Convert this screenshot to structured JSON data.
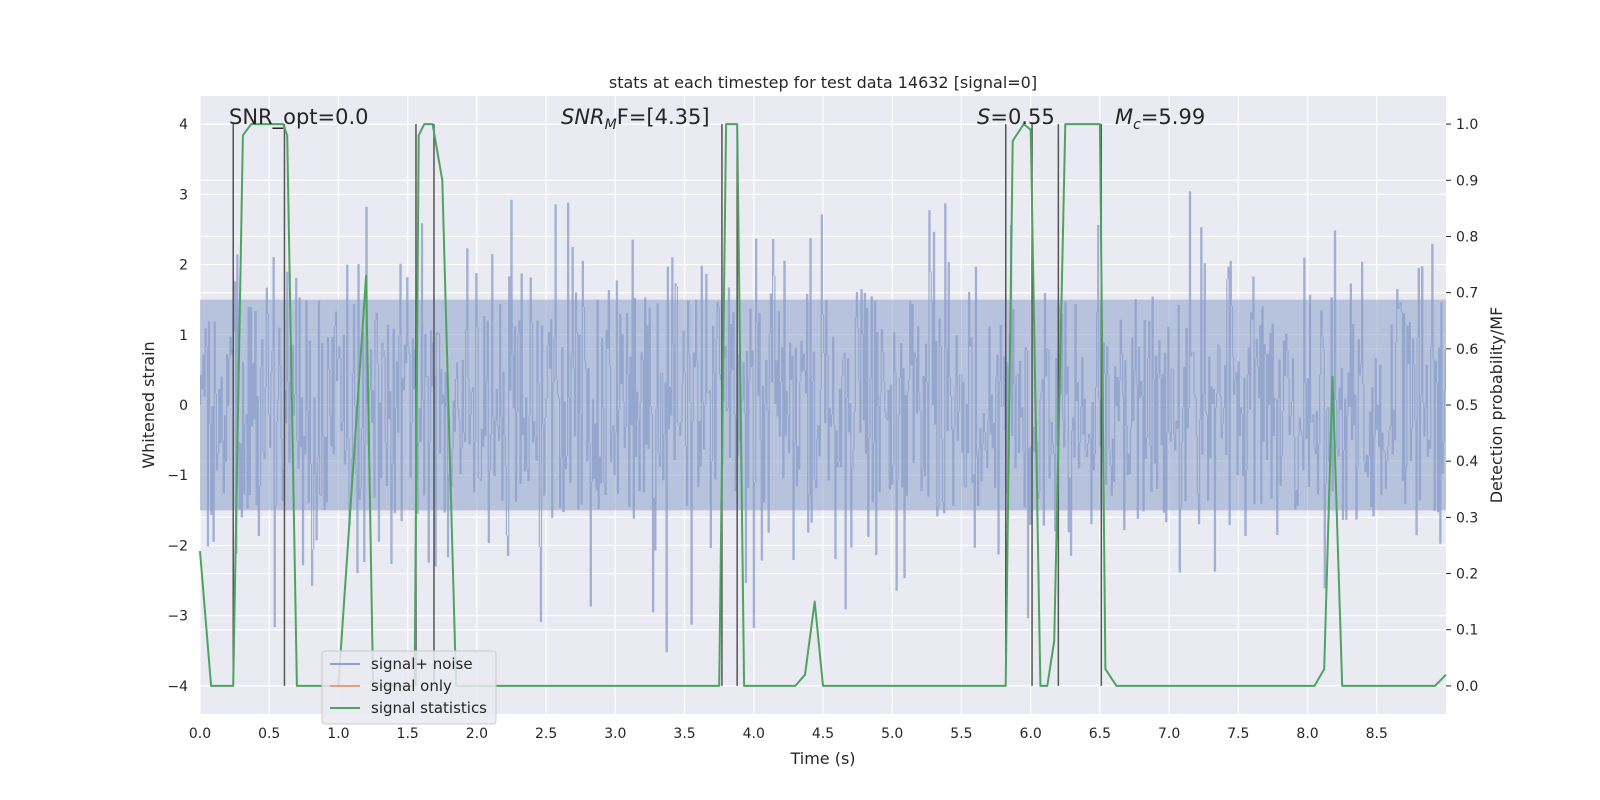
{
  "chart_data": {
    "type": "line",
    "title": "stats at each timestep for test data 14632 [signal=0]",
    "xlabel": "Time (s)",
    "ylabel": "Whitened strain",
    "y2label": "Detection probability/MF",
    "xlim": [
      0.0,
      9.0
    ],
    "ylim": [
      -4.4,
      4.4
    ],
    "y2lim": [
      -0.05,
      1.05
    ],
    "xticks": [
      "0.0",
      "0.5",
      "1.0",
      "1.5",
      "2.0",
      "2.5",
      "3.0",
      "3.5",
      "4.0",
      "4.5",
      "5.0",
      "5.5",
      "6.0",
      "6.5",
      "7.0",
      "7.5",
      "8.0",
      "8.5"
    ],
    "yticks": [
      "−4",
      "−3",
      "−2",
      "−1",
      "0",
      "1",
      "2",
      "3",
      "4"
    ],
    "y2ticks": [
      "0.0",
      "0.1",
      "0.2",
      "0.3",
      "0.4",
      "0.5",
      "0.6",
      "0.7",
      "0.8",
      "0.9",
      "1.0"
    ],
    "grid": true,
    "legend_position": "lower-left",
    "annotations": {
      "snr_opt": "SNR_opt=0.0",
      "snr_mf_base": "SNR",
      "snr_mf_sub": "M",
      "snr_mf_rest": "F=[4.35]",
      "s_label": "S",
      "s_value": "=0.55",
      "mc_base": "M",
      "mc_sub": "c",
      "mc_value": "=5.99"
    },
    "series": [
      {
        "name": "signal+ noise",
        "color": "#8da0cb",
        "axis": "left",
        "kind": "noise-band",
        "values_description_rms": 1.0,
        "sample_envelope": [
          [
            0.0,
            1.5
          ],
          [
            9.0,
            1.5
          ]
        ]
      },
      {
        "name": "signal only",
        "color": "#e5a07e",
        "axis": "left",
        "x": [],
        "y": []
      },
      {
        "name": "signal statistics",
        "color": "#4ea35f",
        "axis": "right",
        "x": [
          0.0,
          0.08,
          0.15,
          0.24,
          0.31,
          0.37,
          0.6,
          0.63,
          0.7,
          0.8,
          1.0,
          1.2,
          1.25,
          1.3,
          1.38,
          1.45,
          1.55,
          1.58,
          1.62,
          1.68,
          1.75,
          1.85,
          2.0,
          2.5,
          3.0,
          3.5,
          3.75,
          3.8,
          3.88,
          3.93,
          4.05,
          4.15,
          4.3,
          4.37,
          4.44,
          4.5,
          4.6,
          5.0,
          5.5,
          5.82,
          5.87,
          5.95,
          6.0,
          6.07,
          6.12,
          6.17,
          6.25,
          6.38,
          6.5,
          6.54,
          6.62,
          6.8,
          6.9,
          7.0,
          7.5,
          8.05,
          8.12,
          8.18,
          8.25,
          8.3,
          8.5,
          8.8,
          8.92,
          9.0
        ],
        "y": [
          0.24,
          0.0,
          0.0,
          0.0,
          0.98,
          1.0,
          1.0,
          0.98,
          0.0,
          0.0,
          0.0,
          0.73,
          0.0,
          0.0,
          0.0,
          0.0,
          0.0,
          0.98,
          1.0,
          1.0,
          0.9,
          0.0,
          0.0,
          0.0,
          0.0,
          0.0,
          0.0,
          1.0,
          1.0,
          0.0,
          0.0,
          0.0,
          0.0,
          0.02,
          0.15,
          0.0,
          0.0,
          0.0,
          0.0,
          0.0,
          0.97,
          1.0,
          0.99,
          0.0,
          0.0,
          0.08,
          1.0,
          1.0,
          1.0,
          0.03,
          0.0,
          0.0,
          0.0,
          0.0,
          0.0,
          0.0,
          0.03,
          0.55,
          0.0,
          0.0,
          0.0,
          0.0,
          0.0,
          0.02
        ]
      }
    ],
    "vertical_markers_x": [
      0.24,
      0.61,
      1.56,
      1.69,
      3.77,
      3.88,
      5.82,
      6.01,
      6.2,
      6.51
    ]
  }
}
